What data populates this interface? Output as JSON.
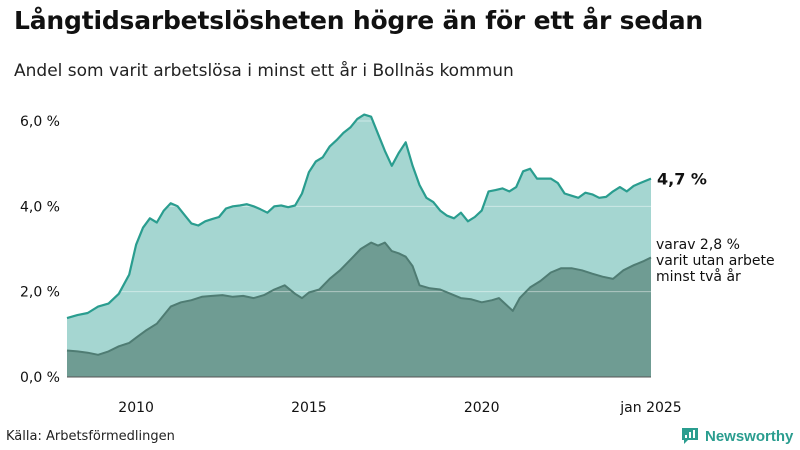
{
  "title": "Långtidsarbetslösheten högre än för ett år sedan",
  "subtitle": "Andel som varit arbetslösa i minst ett år i Bollnäs kommun",
  "source": "Källa: Arbetsförmedlingen",
  "brand": "Newsworthy",
  "colors": {
    "upper_fill": "#a5d6d1",
    "upper_line": "#2a9d8f",
    "lower_fill": "#6f9c93",
    "lower_line": "#4f7c73",
    "grid": "#d8d8d8",
    "text": "#111111"
  },
  "chart_data": {
    "type": "area",
    "x_unit": "year",
    "xlim": [
      2008.0,
      2024.9
    ],
    "ylim": [
      0,
      6.4
    ],
    "y_ticks": [
      0,
      2,
      4,
      6
    ],
    "y_tick_labels": [
      "0,0 %",
      "2,0 %",
      "4,0 %",
      "6,0 %"
    ],
    "x_ticks": [
      2010,
      2015,
      2020,
      2024.9
    ],
    "x_tick_labels": [
      "2010",
      "2015",
      "2020",
      "jan 2025"
    ],
    "series": [
      {
        "name": "Arbetslösa minst ett år",
        "end_label": "4,7 %",
        "points": [
          [
            2008.0,
            1.38
          ],
          [
            2008.3,
            1.45
          ],
          [
            2008.6,
            1.5
          ],
          [
            2008.9,
            1.65
          ],
          [
            2009.2,
            1.72
          ],
          [
            2009.5,
            1.95
          ],
          [
            2009.8,
            2.4
          ],
          [
            2010.0,
            3.1
          ],
          [
            2010.2,
            3.5
          ],
          [
            2010.4,
            3.72
          ],
          [
            2010.6,
            3.62
          ],
          [
            2010.8,
            3.9
          ],
          [
            2011.0,
            4.07
          ],
          [
            2011.2,
            4.0
          ],
          [
            2011.4,
            3.8
          ],
          [
            2011.6,
            3.6
          ],
          [
            2011.8,
            3.55
          ],
          [
            2012.0,
            3.65
          ],
          [
            2012.2,
            3.7
          ],
          [
            2012.4,
            3.75
          ],
          [
            2012.6,
            3.95
          ],
          [
            2012.8,
            4.0
          ],
          [
            2013.0,
            4.02
          ],
          [
            2013.2,
            4.05
          ],
          [
            2013.4,
            4.0
          ],
          [
            2013.6,
            3.93
          ],
          [
            2013.8,
            3.85
          ],
          [
            2014.0,
            4.0
          ],
          [
            2014.2,
            4.02
          ],
          [
            2014.4,
            3.98
          ],
          [
            2014.6,
            4.02
          ],
          [
            2014.8,
            4.3
          ],
          [
            2015.0,
            4.8
          ],
          [
            2015.2,
            5.05
          ],
          [
            2015.4,
            5.15
          ],
          [
            2015.6,
            5.4
          ],
          [
            2015.8,
            5.55
          ],
          [
            2016.0,
            5.72
          ],
          [
            2016.2,
            5.85
          ],
          [
            2016.4,
            6.05
          ],
          [
            2016.6,
            6.15
          ],
          [
            2016.8,
            6.1
          ],
          [
            2017.0,
            5.7
          ],
          [
            2017.2,
            5.3
          ],
          [
            2017.4,
            4.95
          ],
          [
            2017.6,
            5.25
          ],
          [
            2017.8,
            5.5
          ],
          [
            2018.0,
            4.95
          ],
          [
            2018.2,
            4.5
          ],
          [
            2018.4,
            4.2
          ],
          [
            2018.6,
            4.1
          ],
          [
            2018.8,
            3.9
          ],
          [
            2019.0,
            3.78
          ],
          [
            2019.2,
            3.72
          ],
          [
            2019.4,
            3.85
          ],
          [
            2019.6,
            3.65
          ],
          [
            2019.8,
            3.75
          ],
          [
            2020.0,
            3.9
          ],
          [
            2020.2,
            4.35
          ],
          [
            2020.4,
            4.38
          ],
          [
            2020.6,
            4.42
          ],
          [
            2020.8,
            4.35
          ],
          [
            2021.0,
            4.45
          ],
          [
            2021.2,
            4.82
          ],
          [
            2021.4,
            4.88
          ],
          [
            2021.6,
            4.65
          ],
          [
            2021.8,
            4.65
          ],
          [
            2022.0,
            4.65
          ],
          [
            2022.2,
            4.55
          ],
          [
            2022.4,
            4.3
          ],
          [
            2022.6,
            4.25
          ],
          [
            2022.8,
            4.2
          ],
          [
            2023.0,
            4.32
          ],
          [
            2023.2,
            4.28
          ],
          [
            2023.4,
            4.2
          ],
          [
            2023.6,
            4.22
          ],
          [
            2023.8,
            4.35
          ],
          [
            2024.0,
            4.45
          ],
          [
            2024.2,
            4.35
          ],
          [
            2024.4,
            4.48
          ],
          [
            2024.6,
            4.55
          ],
          [
            2024.9,
            4.65
          ]
        ]
      },
      {
        "name": "varav utan arbete minst två år",
        "end_label": "varav 2,8 % varit utan arbete minst två år",
        "end_label_lines": [
          "varav 2,8 %",
          "varit utan arbete",
          "minst två år"
        ],
        "points": [
          [
            2008.0,
            0.62
          ],
          [
            2008.3,
            0.6
          ],
          [
            2008.6,
            0.57
          ],
          [
            2008.9,
            0.52
          ],
          [
            2009.2,
            0.6
          ],
          [
            2009.5,
            0.72
          ],
          [
            2009.8,
            0.8
          ],
          [
            2010.0,
            0.92
          ],
          [
            2010.3,
            1.1
          ],
          [
            2010.6,
            1.25
          ],
          [
            2010.8,
            1.45
          ],
          [
            2011.0,
            1.65
          ],
          [
            2011.3,
            1.75
          ],
          [
            2011.6,
            1.8
          ],
          [
            2011.9,
            1.88
          ],
          [
            2012.2,
            1.9
          ],
          [
            2012.5,
            1.92
          ],
          [
            2012.8,
            1.88
          ],
          [
            2013.1,
            1.9
          ],
          [
            2013.4,
            1.85
          ],
          [
            2013.7,
            1.92
          ],
          [
            2014.0,
            2.05
          ],
          [
            2014.3,
            2.15
          ],
          [
            2014.6,
            1.95
          ],
          [
            2014.8,
            1.85
          ],
          [
            2015.0,
            1.98
          ],
          [
            2015.3,
            2.05
          ],
          [
            2015.6,
            2.3
          ],
          [
            2015.9,
            2.5
          ],
          [
            2016.2,
            2.75
          ],
          [
            2016.5,
            3.0
          ],
          [
            2016.8,
            3.15
          ],
          [
            2017.0,
            3.08
          ],
          [
            2017.2,
            3.15
          ],
          [
            2017.4,
            2.95
          ],
          [
            2017.6,
            2.9
          ],
          [
            2017.8,
            2.82
          ],
          [
            2018.0,
            2.6
          ],
          [
            2018.2,
            2.15
          ],
          [
            2018.5,
            2.08
          ],
          [
            2018.8,
            2.05
          ],
          [
            2019.1,
            1.95
          ],
          [
            2019.4,
            1.85
          ],
          [
            2019.7,
            1.82
          ],
          [
            2020.0,
            1.75
          ],
          [
            2020.3,
            1.8
          ],
          [
            2020.5,
            1.85
          ],
          [
            2020.7,
            1.7
          ],
          [
            2020.9,
            1.55
          ],
          [
            2021.1,
            1.85
          ],
          [
            2021.4,
            2.1
          ],
          [
            2021.7,
            2.25
          ],
          [
            2022.0,
            2.45
          ],
          [
            2022.3,
            2.55
          ],
          [
            2022.6,
            2.55
          ],
          [
            2022.9,
            2.5
          ],
          [
            2023.2,
            2.42
          ],
          [
            2023.5,
            2.35
          ],
          [
            2023.8,
            2.3
          ],
          [
            2024.1,
            2.5
          ],
          [
            2024.4,
            2.62
          ],
          [
            2024.7,
            2.72
          ],
          [
            2024.9,
            2.8
          ]
        ]
      }
    ]
  }
}
